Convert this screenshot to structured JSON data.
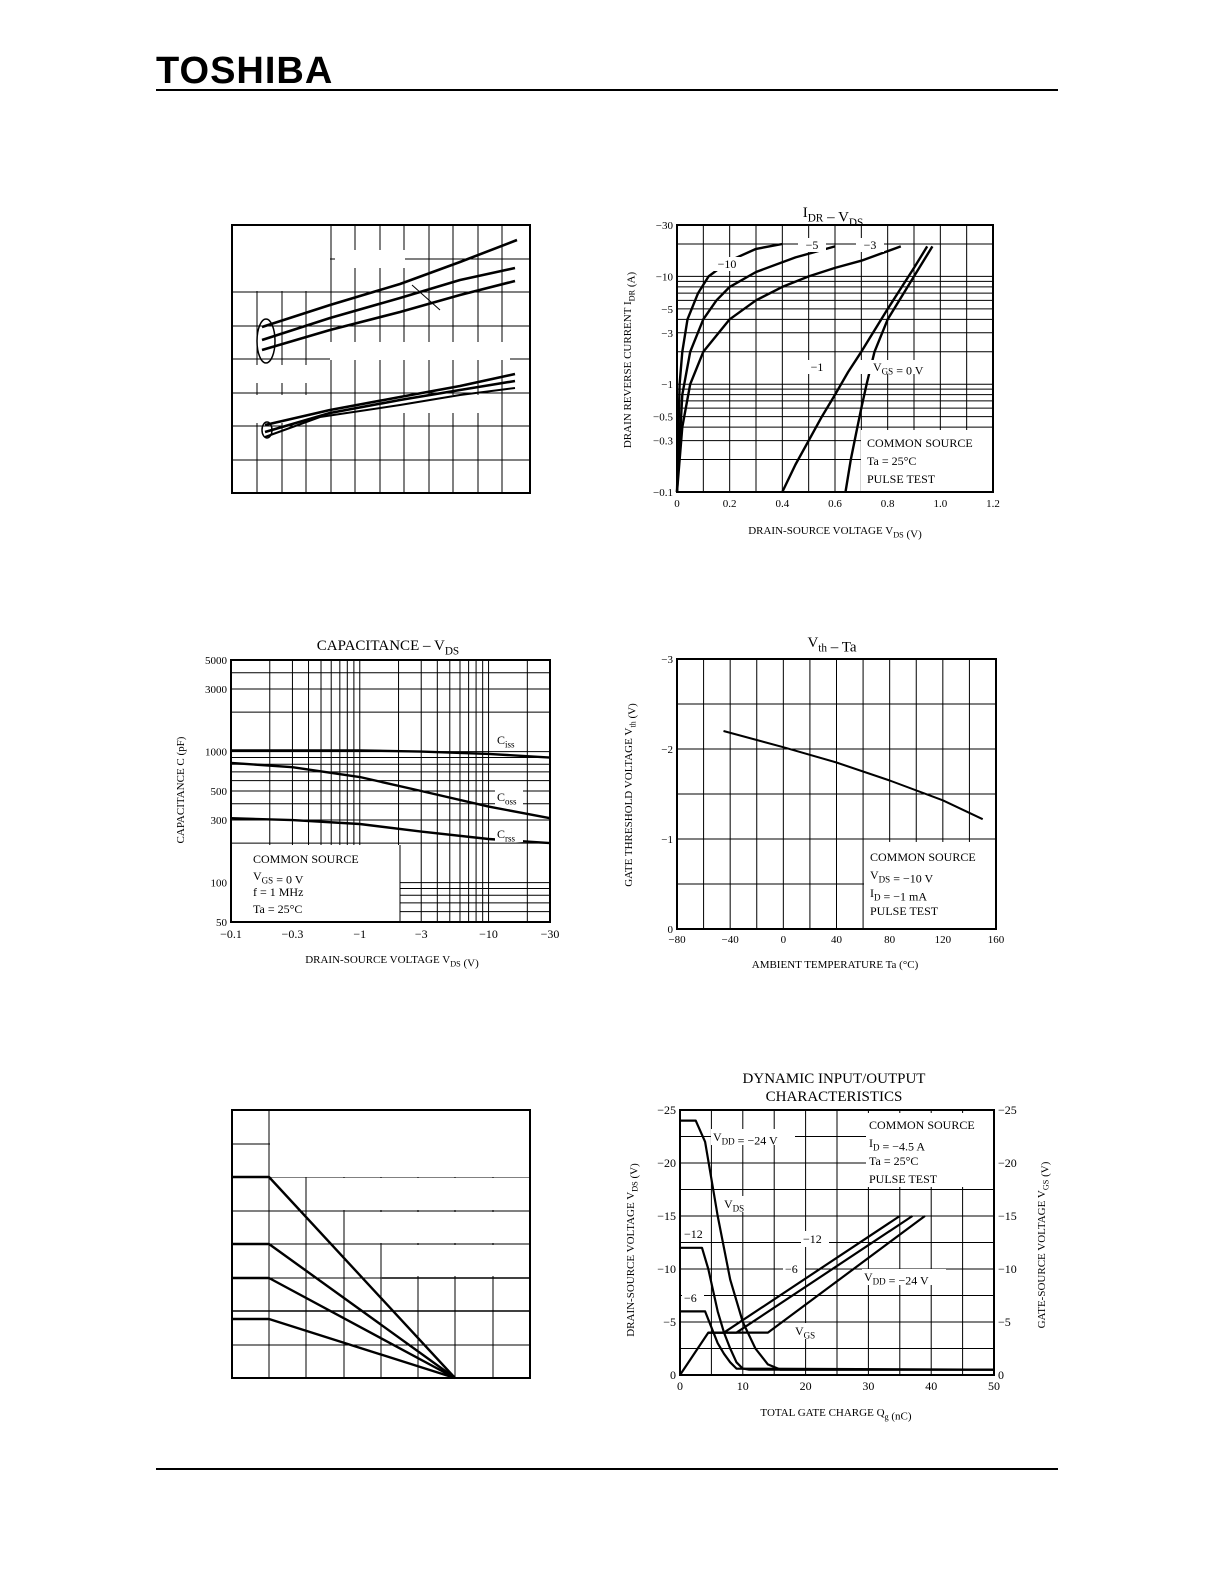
{
  "header": {
    "brand": "TOSHIBA"
  },
  "colors": {
    "ink": "#000000",
    "paper": "#ffffff"
  },
  "chart_data": [
    {
      "id": "blank-1",
      "type": "line",
      "title": "",
      "note": "graph with text not legible; curves only",
      "series": [
        {
          "x": [
            0,
            1
          ],
          "y": [
            0,
            1
          ]
        }
      ]
    },
    {
      "id": "idr-vds",
      "type": "line",
      "title": "IDR – VDS",
      "title_parts": {
        "a": "I",
        "a_sub": "DR",
        "dash": "–",
        "b": "V",
        "b_sub": "DS"
      },
      "xlabel": "DRAIN-SOURCE VOLTAGE   VDS   (V)",
      "xlabel_parts": {
        "text": "DRAIN-SOURCE VOLTAGE",
        "var": "V",
        "sub": "DS",
        "unit": "(V)"
      },
      "ylabel": "DRAIN REVERSE CURRENT   IDR   (A)",
      "ylabel_parts": {
        "text": "DRAIN REVERSE CURRENT",
        "var": "I",
        "sub": "DR",
        "unit": "(A)"
      },
      "xlim": [
        0,
        1.2
      ],
      "ylim": [
        -0.1,
        -30
      ],
      "yscale": "log",
      "xticks": [
        "0",
        "0.2",
        "0.4",
        "0.6",
        "0.8",
        "1.0",
        "1.2"
      ],
      "yticks": [
        "−30",
        "−10",
        "−5",
        "−3",
        "−1",
        "−0.5",
        "−0.3",
        "−0.1"
      ],
      "legend_box": [
        "COMMON SOURCE",
        "Ta = 25°C",
        "PULSE TEST"
      ],
      "curve_labels": [
        "−10",
        "−5",
        "−3",
        "−1",
        "VGS = 0 V"
      ],
      "series": [
        {
          "name": "−10",
          "x": [
            0,
            0.01,
            0.02,
            0.04,
            0.08,
            0.12,
            0.2,
            0.3,
            0.4
          ],
          "y": [
            -0.1,
            -1,
            -2,
            -4,
            -7,
            -10,
            -14,
            -18,
            -20
          ]
        },
        {
          "name": "−5",
          "x": [
            0,
            0.02,
            0.05,
            0.1,
            0.15,
            0.2,
            0.3,
            0.45,
            0.6
          ],
          "y": [
            -0.1,
            -0.8,
            -2,
            -4,
            -6,
            -8,
            -11,
            -15,
            -19
          ]
        },
        {
          "name": "−3",
          "x": [
            0,
            0.02,
            0.05,
            0.1,
            0.2,
            0.3,
            0.4,
            0.5,
            0.6,
            0.7,
            0.85
          ],
          "y": [
            -0.1,
            -0.4,
            -1,
            -2,
            -4,
            -6,
            -8,
            -10,
            -12,
            -14,
            -19
          ]
        },
        {
          "name": "−1",
          "x": [
            0.4,
            0.45,
            0.5,
            0.55,
            0.6,
            0.65,
            0.7,
            0.8,
            0.9,
            0.95
          ],
          "y": [
            -0.1,
            -0.18,
            -0.3,
            -0.5,
            -0.8,
            -1.3,
            -2,
            -5,
            -12,
            -19
          ]
        },
        {
          "name": "VGS = 0 V",
          "x": [
            0.64,
            0.66,
            0.68,
            0.7,
            0.72,
            0.75,
            0.8,
            0.9,
            0.97
          ],
          "y": [
            -0.1,
            -0.2,
            -0.35,
            -0.6,
            -1,
            -2,
            -4,
            -10,
            -19
          ]
        }
      ]
    },
    {
      "id": "capacitance-vds",
      "type": "line",
      "title": "CAPACITANCE – VDS",
      "title_parts": {
        "a": "CAPACITANCE",
        "dash": "–",
        "b": "V",
        "b_sub": "DS"
      },
      "xlabel": "DRAIN-SOURCE VOLTAGE   VDS   (V)",
      "xlabel_parts": {
        "text": "DRAIN-SOURCE VOLTAGE",
        "var": "V",
        "sub": "DS",
        "unit": "(V)"
      },
      "ylabel": "CAPACITANCE   C   (pF)",
      "ylabel_parts": {
        "text": "CAPACITANCE",
        "var": "C",
        "unit": "(pF)"
      },
      "xscale": "log",
      "yscale": "log",
      "xlim": [
        -0.1,
        -30
      ],
      "ylim": [
        50,
        5000
      ],
      "xticks": [
        "−0.1",
        "−0.3",
        "−1",
        "−3",
        "−10",
        "−30"
      ],
      "yticks": [
        "5000",
        "3000",
        "1000",
        "500",
        "300",
        "100",
        "50"
      ],
      "legend_box": [
        "COMMON SOURCE",
        "VGS = 0 V",
        "f = 1 MHz",
        "Ta = 25°C"
      ],
      "series": [
        {
          "name": "Ciss",
          "x": [
            -0.1,
            -0.3,
            -1,
            -3,
            -10,
            -30
          ],
          "y": [
            1020,
            1020,
            1020,
            1000,
            960,
            900
          ]
        },
        {
          "name": "Coss",
          "x": [
            -0.1,
            -0.3,
            -1,
            -3,
            -10,
            -30
          ],
          "y": [
            820,
            760,
            640,
            500,
            380,
            310
          ]
        },
        {
          "name": "Crss",
          "x": [
            -0.1,
            -0.3,
            -1,
            -3,
            -10,
            -30
          ],
          "y": [
            310,
            300,
            280,
            245,
            215,
            200
          ]
        }
      ]
    },
    {
      "id": "vth-ta",
      "type": "line",
      "title": "Vth – Ta",
      "title_parts": {
        "a": "V",
        "a_sub": "th",
        "dash": "–",
        "b": "Ta"
      },
      "xlabel": "AMBIENT TEMPERATURE   Ta   (°C)",
      "ylabel": "GATE THRESHOLD VOLTAGE   Vth   (V)",
      "ylabel_parts": {
        "text": "GATE THRESHOLD VOLTAGE",
        "var": "V",
        "sub": "th",
        "unit": "(V)"
      },
      "xlim": [
        -80,
        160
      ],
      "ylim": [
        0,
        -3
      ],
      "xticks": [
        "−80",
        "−40",
        "0",
        "40",
        "80",
        "120",
        "160"
      ],
      "yticks": [
        "−3",
        "−2",
        "−1",
        "0"
      ],
      "legend_box": [
        "COMMON SOURCE",
        "VDS = −10 V",
        "ID = −1 mA",
        "PULSE TEST"
      ],
      "series": [
        {
          "name": "Vth",
          "x": [
            -45,
            0,
            40,
            80,
            120,
            150
          ],
          "y": [
            -2.2,
            -2.02,
            -1.85,
            -1.65,
            -1.43,
            -1.22
          ]
        }
      ]
    },
    {
      "id": "blank-2",
      "type": "line",
      "title": "",
      "note": "graph with text not legible; curves only",
      "series": [
        {
          "x": [
            0,
            1
          ],
          "y": [
            0,
            1
          ]
        }
      ]
    },
    {
      "id": "dynamic-io",
      "type": "line",
      "title": "DYNAMIC INPUT/OUTPUT CHARACTERISTICS",
      "title_lines": [
        "DYNAMIC INPUT/OUTPUT",
        "CHARACTERISTICS"
      ],
      "xlabel": "TOTAL GATE CHARGE   Qg   (nC)",
      "xlabel_parts": {
        "text": "TOTAL GATE CHARGE",
        "var": "Q",
        "sub": "g",
        "unit": "(nC)"
      },
      "ylabel": "DRAIN-SOURCE VOLTAGE   VDS   (V)",
      "ylabel_parts": {
        "text": "DRAIN-SOURCE VOLTAGE",
        "var": "V",
        "sub": "DS",
        "unit": "(V)"
      },
      "y2label": "GATE-SOURCE VOLTAGE   VGS   (V)",
      "y2label_parts": {
        "text": "GATE-SOURCE VOLTAGE",
        "var": "V",
        "sub": "GS",
        "unit": "(V)"
      },
      "xlim": [
        0,
        50
      ],
      "ylim": [
        0,
        -25
      ],
      "xticks": [
        "0",
        "10",
        "20",
        "30",
        "40",
        "50"
      ],
      "yticks": [
        "−25",
        "−20",
        "−15",
        "−10",
        "−5",
        "0"
      ],
      "y2ticks": [
        "−25",
        "−20",
        "−15",
        "−10",
        "−5",
        "0"
      ],
      "legend_box": [
        "COMMON SOURCE",
        "ID = −4.5 A",
        "Ta = 25°C",
        "PULSE TEST"
      ],
      "curve_labels": [
        "VDD = −24 V",
        "VDS",
        "−12",
        "−6",
        "−12",
        "−6",
        "VDD = −24 V",
        "VGS"
      ],
      "series": [
        {
          "name": "VDS VDD=−24",
          "x": [
            0,
            2.5,
            4,
            6,
            8,
            10,
            12,
            14,
            16,
            50
          ],
          "y": [
            -24,
            -24,
            -22,
            -15,
            -9,
            -5,
            -2.5,
            -1,
            -0.5,
            -0.5
          ]
        },
        {
          "name": "VDS VDD=−12",
          "x": [
            0,
            3.5,
            4.5,
            6,
            7,
            8,
            9,
            10,
            11,
            50
          ],
          "y": [
            -12,
            -12,
            -10,
            -6,
            -4,
            -2.5,
            -1.2,
            -0.6,
            -0.5,
            -0.5
          ]
        },
        {
          "name": "VDS VDD=−6",
          "x": [
            0,
            4,
            5,
            6,
            7,
            8,
            9,
            50
          ],
          "y": [
            -6,
            -6,
            -4.5,
            -3,
            -2,
            -1.2,
            -0.6,
            -0.5
          ]
        },
        {
          "name": "VGS VDD=−6",
          "x": [
            0,
            4.5,
            7,
            35
          ],
          "y": [
            0,
            -4,
            -4,
            -15
          ]
        },
        {
          "name": "VGS VDD=−12",
          "x": [
            4.5,
            9,
            37
          ],
          "y": [
            -4,
            -4,
            -15
          ]
        },
        {
          "name": "VGS VDD=−24",
          "x": [
            4.5,
            14,
            39
          ],
          "y": [
            -4,
            -4,
            -15
          ]
        }
      ]
    }
  ]
}
